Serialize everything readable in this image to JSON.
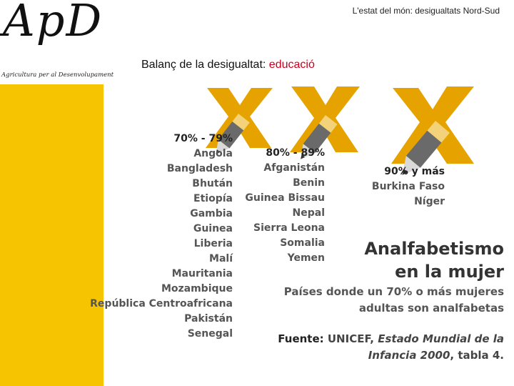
{
  "logo": {
    "mark": "ApD",
    "tagline": "Agricultura per al Desenvolupament"
  },
  "header": {
    "title": "L'estat del món: desigualtats Nord-Sud"
  },
  "subtitle": {
    "prefix": "Balanç de la desigualtat: ",
    "accent": "educació"
  },
  "colors": {
    "accent_red": "#c8001e",
    "mark_orange": "#e6a300",
    "yellow": "#f6c400",
    "pencil_grey": "#6a6a6a"
  },
  "groups": [
    {
      "range": "70% - 79%",
      "countries": [
        "Angola",
        "Bangladesh",
        "Bhután",
        "Etiopía",
        "Gambia",
        "Guinea",
        "Liberia",
        "Malí",
        "Mauritania",
        "Mozambique",
        "República Centroafricana",
        "Pakistán",
        "Senegal"
      ]
    },
    {
      "range": "80% - 89%",
      "countries": [
        "Afganistán",
        "Benin",
        "Guinea Bissau",
        "Nepal",
        "Sierra Leona",
        "Somalia",
        "Yemen"
      ]
    },
    {
      "range": "90% y más",
      "countries": [
        "Burkina Faso",
        "Níger"
      ]
    }
  ],
  "headline": {
    "line1": "Analfabetismo",
    "line2": "en la mujer",
    "desc1": "Países donde un 70% o más mujeres",
    "desc2": "adultas son analfabetas"
  },
  "source": {
    "label": "Fuente:",
    "org": " UNICEF, ",
    "pub1": "Estado Mundial de la",
    "pub2": "Infancia 2000",
    "table": ", tabla 4."
  },
  "icons": [
    "x-mark-icon",
    "pencil-icon"
  ]
}
